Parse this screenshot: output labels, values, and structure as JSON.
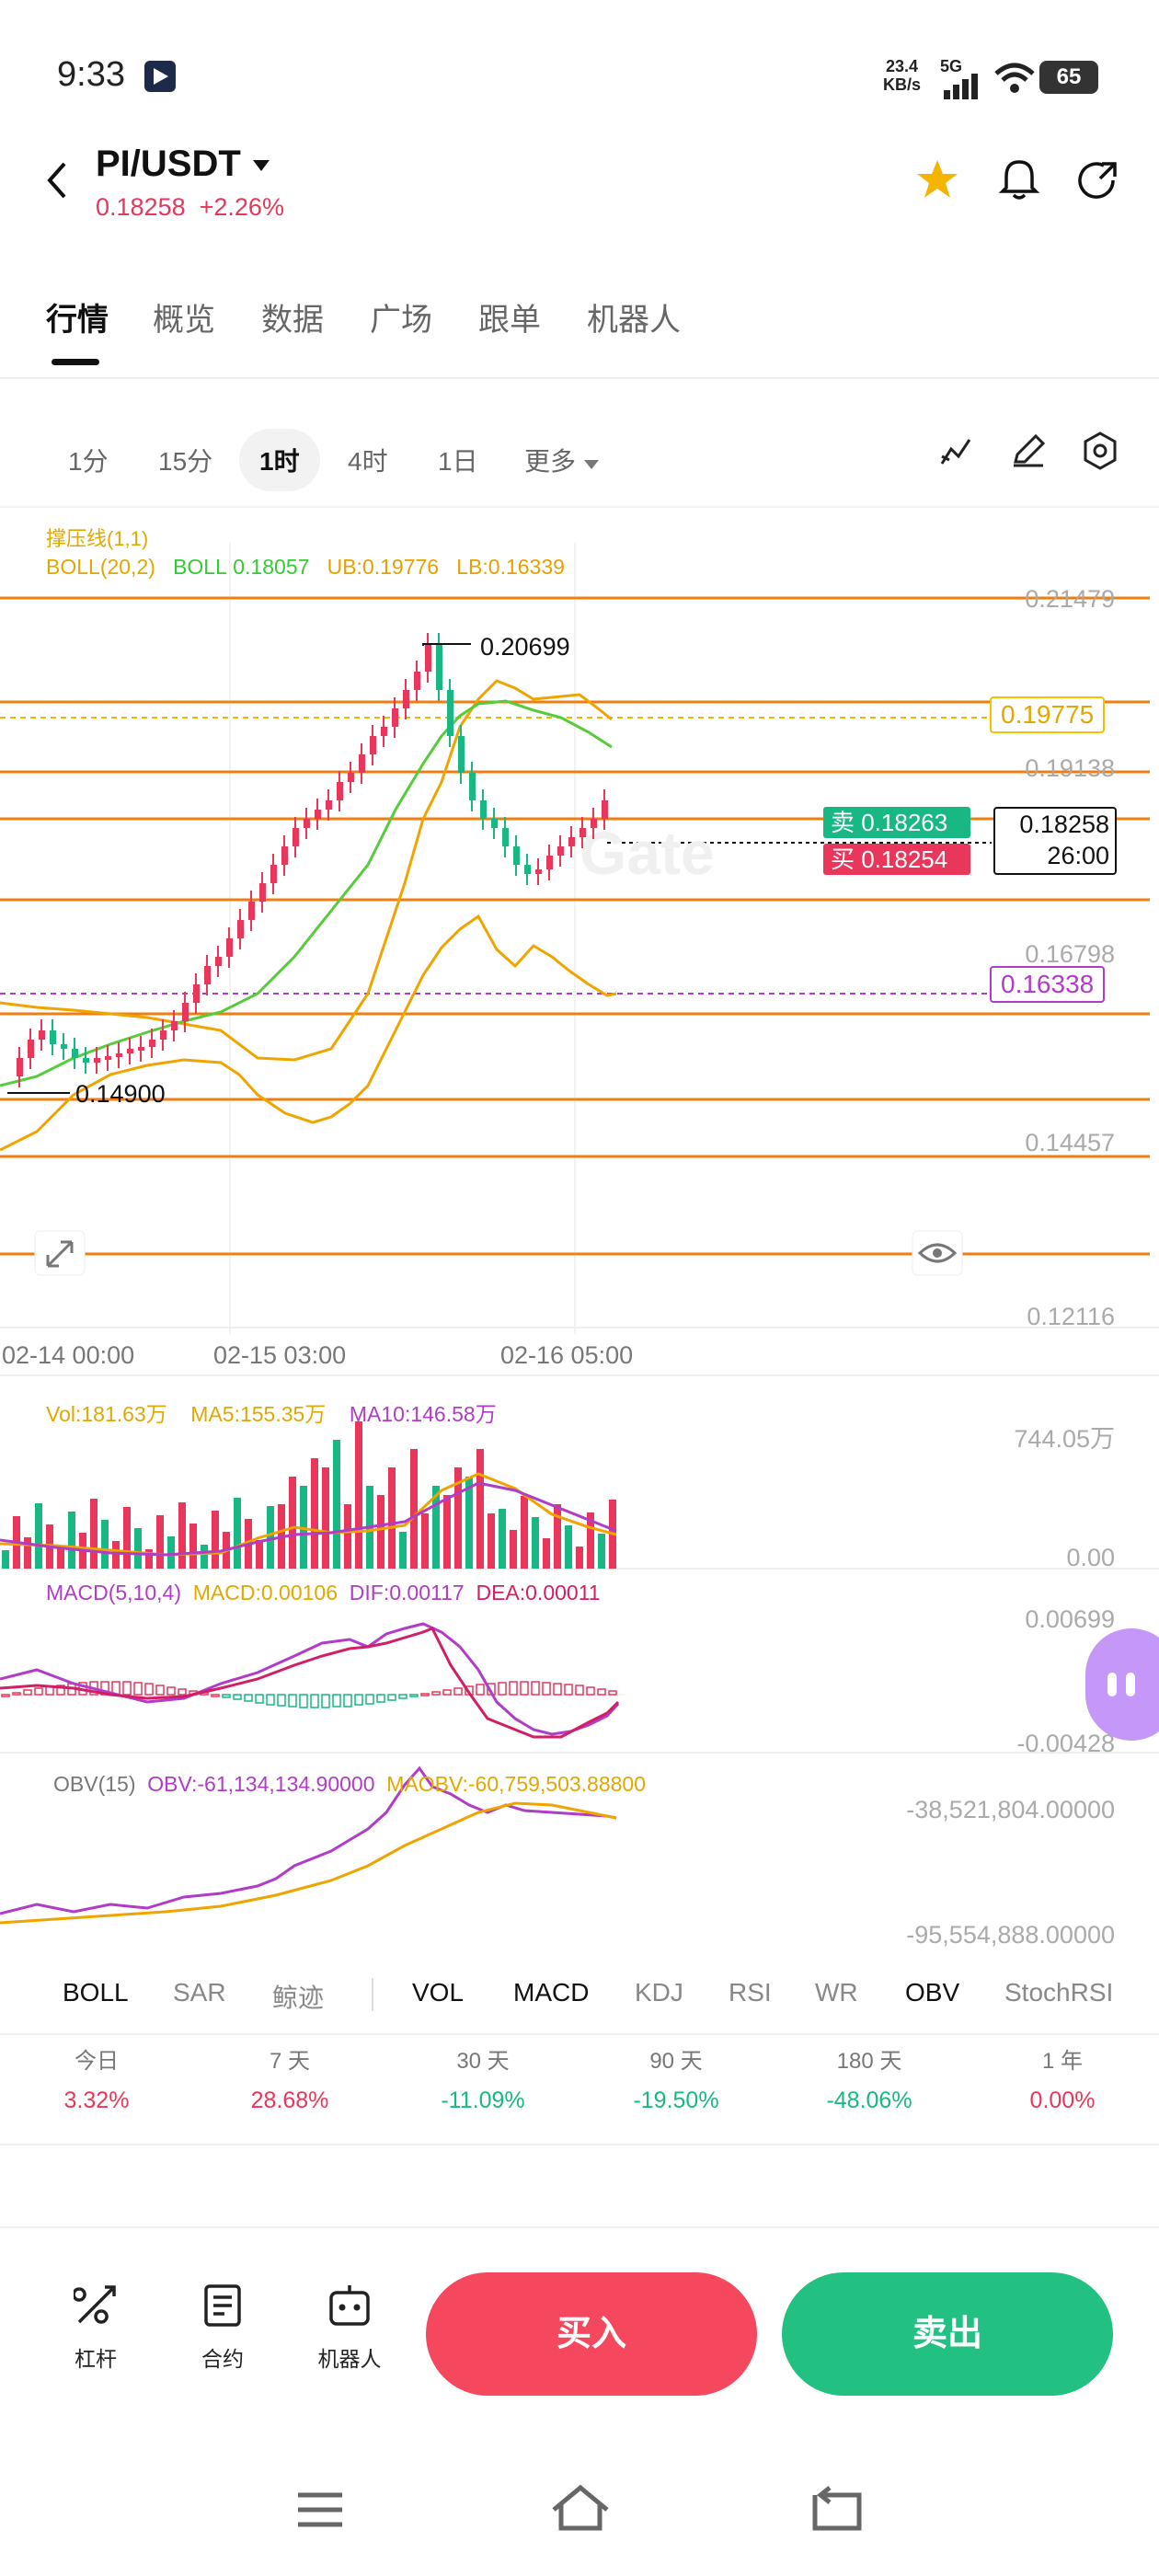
{
  "status_bar": {
    "time": "9:33",
    "net_speed_value": "23.4",
    "net_speed_unit": "KB/s",
    "net_type": "5G",
    "battery": "65"
  },
  "header": {
    "pair": "PI/USDT",
    "price": "0.18258",
    "change": "+2.26%"
  },
  "tabs": [
    "行情",
    "概览",
    "数据",
    "广场",
    "跟单",
    "机器人"
  ],
  "timeframes": [
    "1分",
    "15分",
    "1时",
    "4时",
    "1日",
    "更多"
  ],
  "chart": {
    "legend_title": "撑压线(1,1)",
    "boll_params": "BOLL(20,2)",
    "boll_mid": "BOLL:0.18057",
    "boll_ub": "UB:0.19776",
    "boll_lb": "LB:0.16339",
    "price_levels": [
      "0.21479",
      "0.19138",
      "0.16798",
      "0.14457",
      "0.12116"
    ],
    "ub_box": "0.19775",
    "lb_box": "0.16338",
    "high_label": "0.20699",
    "low_label": "0.14900",
    "sell_label": "卖 0.18263",
    "buy_label": "买 0.18254",
    "current_price": "0.18258",
    "countdown": "26:00",
    "x_labels": [
      "02-14 00:00",
      "02-15 03:00",
      "02-16 05:00"
    ],
    "watermark": "Gate"
  },
  "vol": {
    "vol": "Vol:181.63万",
    "ma5": "MA5:155.35万",
    "ma10": "MA10:146.58万",
    "max": "744.05万",
    "min": "0.00"
  },
  "macd": {
    "params": "MACD(5,10,4)",
    "macd": "MACD:0.00106",
    "dif": "DIF:0.00117",
    "dea": "DEA:0.00011",
    "max": "0.00699",
    "min": "-0.00428"
  },
  "obv": {
    "params": "OBV(15)",
    "obv": "OBV:-61,134,134.90000",
    "maobv": "MAOBV:-60,759,503.88800",
    "max": "-38,521,804.00000",
    "min": "-95,554,888.00000"
  },
  "indicators": [
    "BOLL",
    "SAR",
    "鲸迹",
    "VOL",
    "MACD",
    "KDJ",
    "RSI",
    "WR",
    "OBV",
    "StochRSI"
  ],
  "performance": [
    {
      "label": "今日",
      "value": "3.32%"
    },
    {
      "label": "7 天",
      "value": "28.68%"
    },
    {
      "label": "30 天",
      "value": "-11.09%"
    },
    {
      "label": "90 天",
      "value": "-19.50%"
    },
    {
      "label": "180 天",
      "value": "-48.06%"
    },
    {
      "label": "1 年",
      "value": "0.00%"
    }
  ],
  "bottom_actions": {
    "leverage": "杠杆",
    "contract": "合约",
    "bot": "机器人",
    "buy": "买入",
    "sell": "卖出"
  },
  "colors": {
    "up": "#e8375b",
    "down": "#18b783",
    "accent": "#f5b400"
  }
}
